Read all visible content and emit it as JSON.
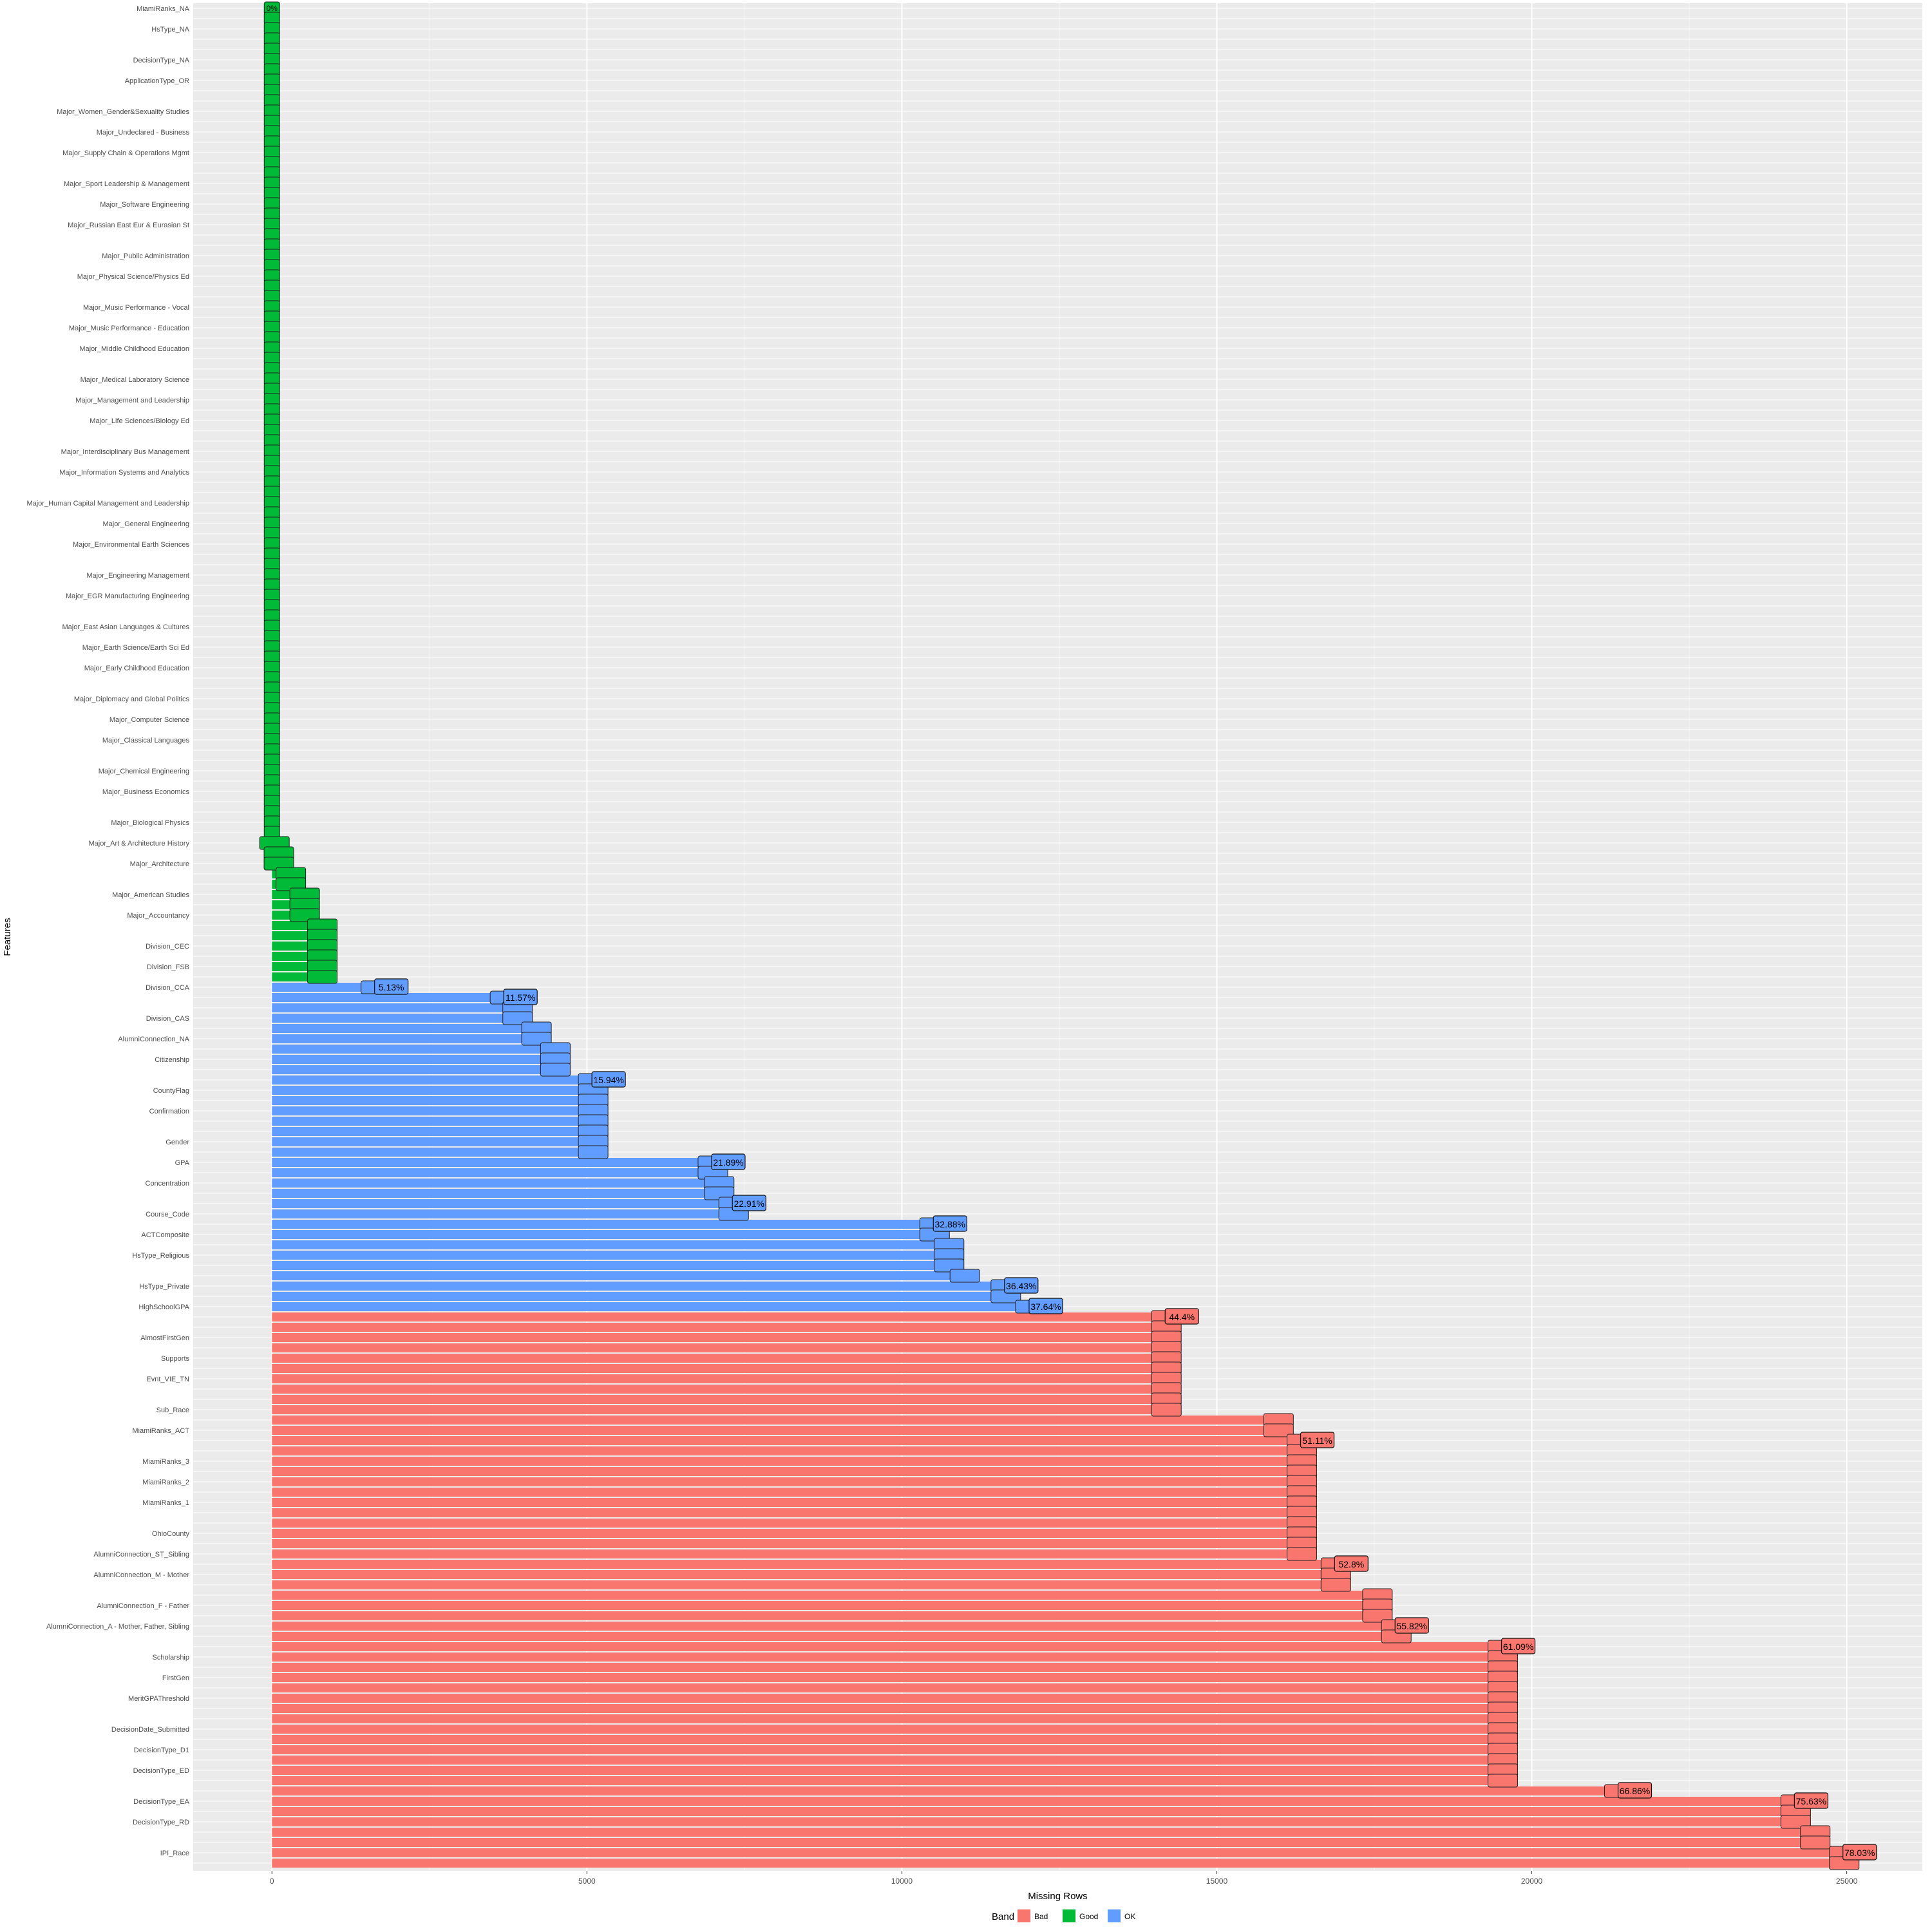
{
  "chart_data": {
    "type": "bar",
    "orientation": "horizontal",
    "xlabel": "Missing Rows",
    "ylabel": "Features",
    "xlim": [
      -1250,
      26200
    ],
    "xticks": [
      0,
      5000,
      10000,
      15000,
      20000,
      25000
    ],
    "xtick_labels": [
      "0",
      "5000",
      "10000",
      "15000",
      "20000",
      "25000"
    ],
    "grid": true,
    "legend": {
      "title": "Band",
      "position": "bottom",
      "entries": [
        {
          "name": "Bad",
          "color": "#F8766D"
        },
        {
          "name": "Good",
          "color": "#00BA38"
        },
        {
          "name": "OK",
          "color": "#619CFF"
        }
      ]
    },
    "visible_bars": [
      {
        "label": "Concentration",
        "value": 1650,
        "pct": "5.13%",
        "band": "OK"
      },
      {
        "label": "Course_Code",
        "value": 3700,
        "pct": "11.57%",
        "band": "OK"
      },
      {
        "label": "ACTComposite",
        "value": 5100,
        "pct": "15.94%",
        "band": "OK"
      },
      {
        "label": "HighSchoolGPA",
        "value": 7000,
        "pct": "21.89%",
        "band": "OK"
      },
      {
        "label": "Supports",
        "value": 7330,
        "pct": "22.91%",
        "band": "OK"
      },
      {
        "label": "AlmostFirstGen",
        "value": 10520,
        "pct": "32.88%",
        "band": "OK"
      },
      {
        "label": "Evnt_VIE_TN",
        "value": 11650,
        "pct": "36.43%",
        "band": "OK"
      },
      {
        "label": "Sub_Race",
        "value": 12040,
        "pct": "37.64%",
        "band": "OK"
      },
      {
        "label": "MiamiRanks_ACT",
        "value": 14200,
        "pct": "44.4%",
        "band": "Bad"
      },
      {
        "label": "AlumniConnection_A",
        "value": 16350,
        "pct": "51.11%",
        "band": "Bad"
      },
      {
        "label": "Scholarship",
        "value": 16890,
        "pct": "52.8%",
        "band": "Bad"
      },
      {
        "label": "DecisionDate",
        "value": 17850,
        "pct": "55.82%",
        "band": "Bad"
      },
      {
        "label": "DecisionType_D1",
        "value": 19540,
        "pct": "61.09%",
        "band": "Bad"
      },
      {
        "label": "IPI_Race",
        "value": 21390,
        "pct": "66.86%",
        "band": "Bad"
      },
      {
        "label": "IPI_Race",
        "value": 24190,
        "pct": "75.63%",
        "band": "Bad"
      },
      {
        "label": "IPI_Race",
        "value": 24960,
        "pct": "78.03%",
        "band": "Bad"
      }
    ],
    "tick_labels_visible": [
      "MiamiRanks_NA",
      "HsType_NA",
      "DecisionType_NA",
      "ApplicationType_OR",
      "Major_Women_Gender&Sexuality Studies",
      "Major_Undeclared - Business",
      "Major_Supply Chain & Operations Mgmt",
      "Major_Sport Leadership & Management",
      "Major_Software Engineering",
      "Major_Russian East Eur & Eurasian St",
      "Major_Public Administration",
      "Major_Physical Science/Physics Ed",
      "Major_Music Performance - Vocal",
      "Major_Music Performance - Education",
      "Major_Middle Childhood Education",
      "Major_Medical Laboratory Science",
      "Major_Management and Leadership",
      "Major_Life Sciences/Biology Ed",
      "Major_Interdisciplinary Bus Management",
      "Major_Information Systems and Analytics",
      "Major_Human Capital Management and Leadership",
      "Major_General Engineering",
      "Major_Environmental Earth Sciences",
      "Major_Engineering Management",
      "Major_EGR Manufacturing Engineering",
      "Major_East Asian Languages & Cultures",
      "Major_Earth Science/Earth Sci Ed",
      "Major_Early Childhood Education",
      "Major_Diplomacy and Global Politics",
      "Major_Computer Science",
      "Major_Classical Languages",
      "Major_Chemical Engineering",
      "Major_Business Economics",
      "Major_Biological Physics",
      "Major_Art & Architecture History",
      "Major_Architecture",
      "Major_American Studies",
      "Major_Accountancy",
      "Division_CEC",
      "Division_FSB",
      "Division_CCA",
      "Division_CAS",
      "AlumniConnection_NA",
      "Citizenship",
      "CountyFlag",
      "Confirmation",
      "Gender",
      "GPA",
      "Concentration",
      "Course_Code",
      "ACTComposite",
      "HsType_Religious",
      "HsType_Private",
      "HighSchoolGPA",
      "AlmostFirstGen",
      "Supports",
      "Evnt_VIE_TN",
      "Sub_Race",
      "MiamiRanks_ACT",
      "MiamiRanks_3",
      "MiamiRanks_2",
      "MiamiRanks_1",
      "OhioCounty",
      "AlumniConnection_ST_Sibling",
      "AlumniConnection_M - Mother",
      "AlumniConnection_F - Father",
      "AlumniConnection_A - Mother, Father, Sibling",
      "Scholarship",
      "FirstGen",
      "MeritGPAThreshold",
      "DecisionDate_Submitted",
      "DecisionType_D1",
      "DecisionType_ED",
      "DecisionType_EA",
      "DecisionType_RD",
      "IPI_Race"
    ]
  }
}
